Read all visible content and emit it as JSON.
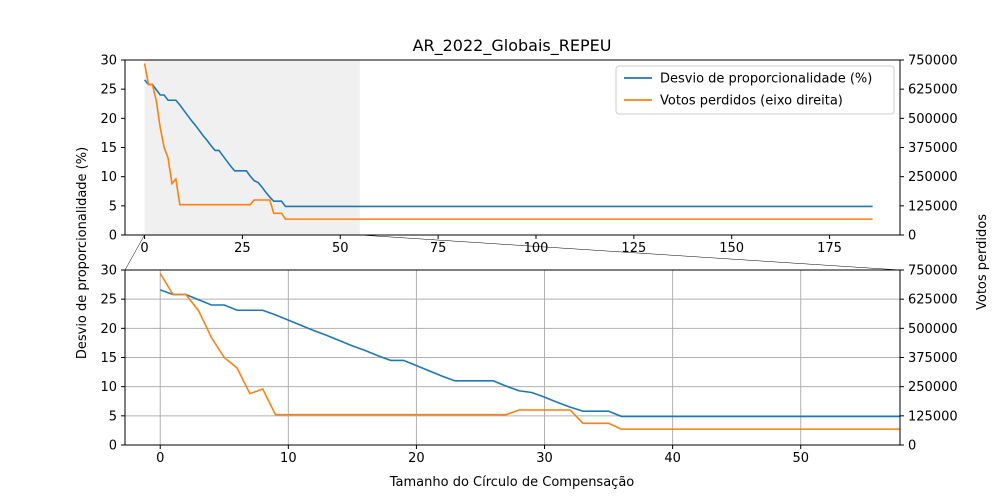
{
  "chart_data": {
    "type": "line",
    "title": "AR_2022_Globais_REPEU",
    "xlabel": "Tamanho do Círculo de Compensação",
    "ylabel_left": "Desvio de proporcionalidade (%)",
    "ylabel_right": "Votos perdidos",
    "legend_position": "top-right",
    "series": [
      {
        "name": "Desvio de proporcionalidade (%)",
        "axis": "left",
        "color": "#1f77b4",
        "x": [
          0,
          1,
          2,
          3,
          4,
          5,
          6,
          7,
          8,
          9,
          10,
          11,
          12,
          13,
          14,
          15,
          16,
          17,
          18,
          19,
          20,
          21,
          22,
          23,
          24,
          25,
          26,
          27,
          28,
          29,
          30,
          31,
          32,
          33,
          34,
          35,
          36,
          186
        ],
        "values": [
          26.6,
          25.8,
          25.8,
          24.9,
          24.0,
          24.0,
          23.1,
          23.1,
          23.1,
          22.3,
          21.4,
          20.5,
          19.6,
          18.8,
          17.9,
          17.0,
          16.2,
          15.3,
          14.5,
          14.5,
          13.6,
          12.7,
          11.8,
          11.0,
          11.0,
          11.0,
          11.0,
          10.1,
          9.3,
          9.0,
          8.2,
          7.3,
          6.5,
          5.8,
          5.8,
          5.8,
          4.9,
          4.9
        ]
      },
      {
        "name": "Votos perdidos (eixo direita)",
        "axis": "right",
        "color": "#ff7f0e",
        "x": [
          0,
          1,
          2,
          3,
          4,
          5,
          6,
          7,
          8,
          9,
          10,
          11,
          12,
          13,
          14,
          15,
          16,
          17,
          18,
          19,
          20,
          21,
          22,
          23,
          24,
          25,
          26,
          27,
          28,
          29,
          30,
          31,
          32,
          33,
          34,
          35,
          36,
          186
        ],
        "values": [
          735000,
          645000,
          645000,
          575000,
          460000,
          375000,
          330000,
          220000,
          240000,
          130000,
          130000,
          130000,
          130000,
          130000,
          130000,
          130000,
          130000,
          130000,
          130000,
          130000,
          130000,
          130000,
          130000,
          130000,
          130000,
          130000,
          130000,
          130000,
          150000,
          150000,
          150000,
          150000,
          150000,
          93000,
          93000,
          93000,
          68000,
          68000
        ]
      }
    ],
    "top_panel": {
      "xlim": [
        -5,
        193
      ],
      "ylim_left": [
        0,
        30
      ],
      "ylim_right": [
        0,
        750000
      ],
      "x_ticks": [
        0,
        25,
        50,
        75,
        100,
        125,
        150,
        175
      ],
      "y_ticks_left": [
        0,
        5,
        10,
        15,
        20,
        25,
        30
      ],
      "y_ticks_right": [
        0,
        125000,
        250000,
        375000,
        500000,
        625000,
        750000
      ],
      "grid": false,
      "zoom_region": [
        0,
        55
      ]
    },
    "bottom_panel": {
      "xlim": [
        -2.75,
        57.75
      ],
      "ylim_left": [
        0,
        30
      ],
      "ylim_right": [
        0,
        750000
      ],
      "x_ticks": [
        0,
        10,
        20,
        30,
        40,
        50
      ],
      "y_ticks_left": [
        0,
        5,
        10,
        15,
        20,
        25,
        30
      ],
      "y_ticks_right": [
        0,
        125000,
        250000,
        375000,
        500000,
        625000,
        750000
      ],
      "grid": true
    }
  }
}
